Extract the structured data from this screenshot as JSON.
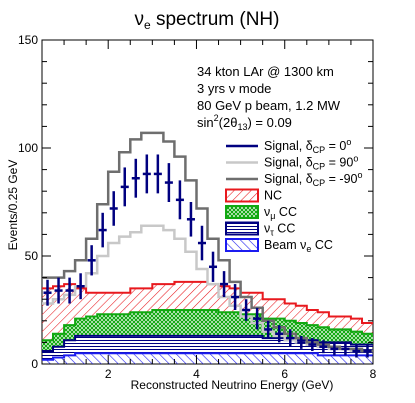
{
  "chart_data": {
    "type": "histogram",
    "title": {
      "main": "ν",
      "sub": "e",
      "rest": " spectrum (NH)"
    },
    "xlabel": "Reconstructed Neutrino Energy (GeV)",
    "ylabel": "Events/0.25 GeV",
    "xlim": [
      0.5,
      8
    ],
    "ylim": [
      0,
      150
    ],
    "x_ticks": [
      "2",
      "4",
      "6",
      "8"
    ],
    "y_ticks": [
      "0",
      "50",
      "100",
      "150"
    ],
    "bin_width": 0.25,
    "bin_edges_start": 0.5,
    "info": {
      "line1": "34 kton LAr @ 1300 km",
      "line2": "3 yrs ν mode",
      "line3": "80 GeV p beam, 1.2 MW",
      "line4_prefix": "sin",
      "line4_sup": "2",
      "line4_mid": "(2θ",
      "line4_sub": "13",
      "line4_suffix": ") = 0.09"
    },
    "legend": [
      {
        "key": "signal0",
        "text": "Signal, δ",
        "sub": "CP",
        "after": " = 0",
        "sup": "o",
        "color": "#000080",
        "style": "line"
      },
      {
        "key": "signal90",
        "text": "Signal, δ",
        "sub": "CP",
        "after": " = 90",
        "sup": "o",
        "color": "#c8c8c8",
        "style": "line"
      },
      {
        "key": "signalm90",
        "text": "Signal, δ",
        "sub": "CP",
        "after": " = -90",
        "sup": "o",
        "color": "#6e6e6e",
        "style": "line"
      },
      {
        "key": "nc",
        "text": "NC",
        "sub": "",
        "after": "",
        "sup": "",
        "color": "#e8191e",
        "style": "hatch"
      },
      {
        "key": "numu",
        "text": "ν",
        "sub": "μ",
        "after": " CC",
        "sup": "",
        "color": "#11a811",
        "style": "cross"
      },
      {
        "key": "nutau",
        "text": "ν",
        "sub": "τ",
        "after": " CC",
        "sup": "",
        "color": "#000080",
        "style": "hatch"
      },
      {
        "key": "beam",
        "text": "Beam ν",
        "sub": "e",
        "after": " CC",
        "sup": "",
        "color": "#1c1cf0",
        "style": "hatch"
      }
    ],
    "series": {
      "signal_cp_m90": [
        40,
        40,
        43,
        48,
        58,
        74,
        89,
        98,
        104,
        107,
        107,
        103,
        96,
        85,
        72,
        58,
        48,
        38,
        31,
        26,
        20,
        17,
        14,
        12,
        10,
        9,
        8,
        7,
        7,
        6
      ],
      "signal_cp_90": [
        28,
        30,
        32,
        36,
        42,
        50,
        56,
        59,
        61,
        64,
        64,
        62,
        58,
        52,
        44,
        37,
        31,
        27,
        22,
        19,
        15,
        13,
        11,
        10,
        9,
        8,
        7,
        7,
        6,
        6
      ],
      "signal_cp_0_data": [
        33,
        34,
        34,
        36,
        48,
        62,
        72,
        82,
        86,
        88,
        88,
        84,
        76,
        67,
        56,
        45,
        37,
        31,
        25,
        21,
        16,
        14,
        12,
        10,
        9,
        8,
        7,
        7,
        6,
        6
      ],
      "signal_cp_0_err": [
        6,
        6,
        6,
        6,
        7,
        8,
        8,
        9,
        9,
        9,
        9,
        9,
        9,
        8,
        8,
        7,
        6,
        6,
        5,
        5,
        4,
        4,
        4,
        3,
        3,
        3,
        3,
        3,
        3,
        3
      ],
      "stack_beam": [
        2,
        3,
        4,
        5,
        5,
        5,
        5,
        5,
        5,
        5,
        5,
        5,
        5,
        5,
        5,
        5,
        5,
        5,
        5,
        5,
        5,
        5,
        5,
        5,
        5,
        4,
        4,
        4,
        4,
        4
      ],
      "stack_nutau": [
        4,
        5,
        7,
        8,
        8,
        8,
        8,
        8,
        8,
        8,
        8,
        8,
        8,
        8,
        8,
        8,
        8,
        8,
        8,
        8,
        7,
        7,
        7,
        6,
        6,
        6,
        6,
        6,
        5,
        5
      ],
      "stack_numu": [
        5,
        6,
        7,
        8,
        9,
        10,
        10,
        10,
        11,
        11,
        12,
        12,
        12,
        12,
        12,
        12,
        11,
        11,
        10,
        10,
        9,
        9,
        8,
        8,
        7,
        7,
        6,
        6,
        6,
        5
      ],
      "stack_nc": [
        24,
        22,
        19,
        14,
        11,
        10,
        10,
        10,
        11,
        11,
        12,
        12,
        13,
        13,
        13,
        12,
        12,
        11,
        10,
        10,
        9,
        9,
        8,
        8,
        7,
        7,
        6,
        6,
        6,
        5
      ]
    }
  }
}
